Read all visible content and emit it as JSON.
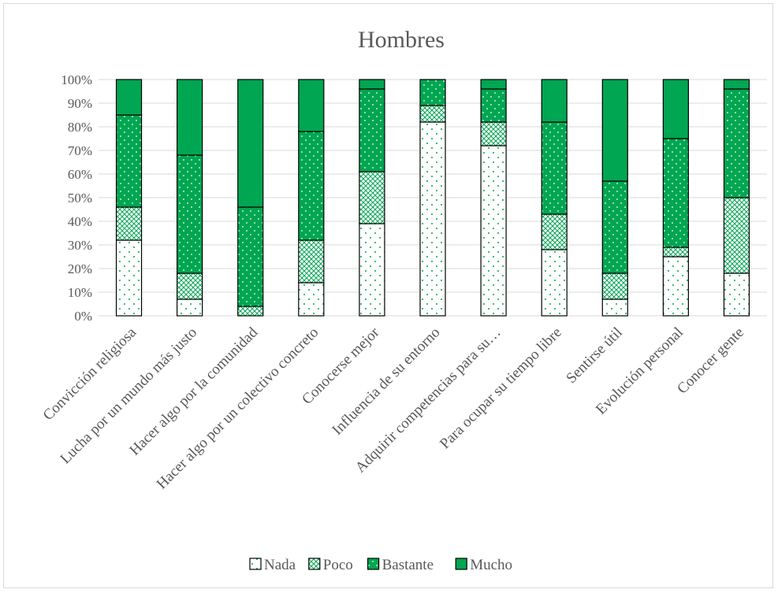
{
  "chart_data": {
    "type": "bar",
    "stacked": true,
    "percent": true,
    "title": "Hombres",
    "categories": [
      "Convicción religiosa",
      "Lucha por un mundo más justo",
      "Hacer algo por la comunidad",
      "Hacer algo por un colectivo concreto",
      "Conocerse mejor",
      "Influencia de su entorno",
      "Adquirir competencias para su…",
      "Para ocupar su tiempo libre",
      "Sentirse útil",
      "Evolución personal",
      "Conocer gente"
    ],
    "series": [
      {
        "name": "Nada",
        "values": [
          32,
          7,
          0,
          14,
          39,
          82,
          72,
          28,
          7,
          25,
          18
        ]
      },
      {
        "name": "Poco",
        "values": [
          14,
          11,
          4,
          18,
          22,
          7,
          10,
          15,
          11,
          4,
          32
        ]
      },
      {
        "name": "Bastante",
        "values": [
          39,
          50,
          42,
          46,
          35,
          11,
          14,
          39,
          39,
          46,
          46
        ]
      },
      {
        "name": "Mucho",
        "values": [
          15,
          32,
          54,
          22,
          4,
          0,
          4,
          18,
          43,
          25,
          4
        ]
      }
    ],
    "yticks": [
      "0%",
      "10%",
      "20%",
      "30%",
      "40%",
      "50%",
      "60%",
      "70%",
      "80%",
      "90%",
      "100%"
    ],
    "ylim": [
      0,
      100
    ],
    "grid": true,
    "legend_position": "bottom",
    "colors": {
      "Nada": "#ffffff",
      "Poco": "#ffffff",
      "Bastante": "#00a651",
      "Mucho": "#00a651",
      "pattern": "#00a651",
      "outline": "#000000",
      "grid": "#d9d9d9",
      "text": "#595959"
    }
  }
}
